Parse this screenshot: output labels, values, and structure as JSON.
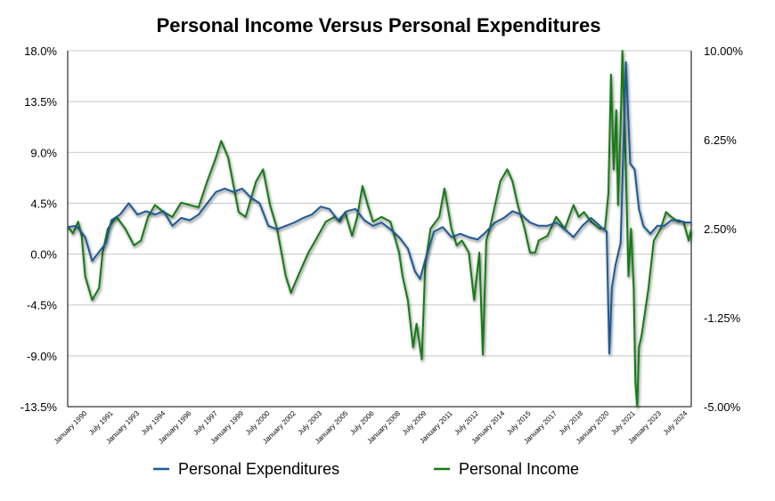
{
  "chart_data": {
    "type": "line",
    "title": "Personal Income Versus Personal Expenditures",
    "ylim_left": [
      -13.5,
      18.0
    ],
    "ylim_right": [
      -5.0,
      10.0
    ],
    "yticks_left": [
      "18.0%",
      "13.5%",
      "9.0%",
      "4.5%",
      "0.0%",
      "-4.5%",
      "-9.0%",
      "-13.5%"
    ],
    "yticks_right": [
      "10.00%",
      "6.25%",
      "2.50%",
      "-1.25%",
      "-5.00%"
    ],
    "x_labels": [
      "January 1990",
      "July 1991",
      "January 1993",
      "July 1994",
      "January 1996",
      "July 1997",
      "January 1999",
      "July 2000",
      "January 2002",
      "July 2003",
      "January 2005",
      "July 2006",
      "January 2008",
      "July 2009",
      "January 2011",
      "July 2012",
      "January 2014",
      "July 2015",
      "January 2017",
      "July 2018",
      "January 2020",
      "July 2021",
      "January 2023",
      "July 2024"
    ],
    "grid": true,
    "legend": "bottom",
    "series": [
      {
        "name": "Personal Expenditures",
        "axis": "left",
        "color": "#1f5a96",
        "x": [
          1989.0,
          1989.5,
          1990.0,
          1990.4,
          1990.8,
          1991.2,
          1991.5,
          1992.0,
          1992.5,
          1993.0,
          1993.5,
          1994.0,
          1994.5,
          1995.0,
          1995.5,
          1996.0,
          1996.5,
          1997.0,
          1997.5,
          1998.0,
          1998.5,
          1999.0,
          1999.5,
          2000.0,
          2000.5,
          2001.0,
          2001.5,
          2002.0,
          2002.5,
          2003.0,
          2003.5,
          2004.0,
          2004.5,
          2005.0,
          2005.5,
          2006.0,
          2006.5,
          2007.0,
          2007.5,
          2008.0,
          2008.5,
          2008.9,
          2009.2,
          2009.5,
          2010.0,
          2010.5,
          2011.0,
          2011.5,
          2012.0,
          2012.5,
          2013.0,
          2013.5,
          2014.0,
          2014.5,
          2015.0,
          2015.5,
          2016.0,
          2016.5,
          2017.0,
          2017.5,
          2018.0,
          2018.5,
          2019.0,
          2019.5,
          2019.9,
          2020.05,
          2020.2,
          2020.4,
          2020.7,
          2021.0,
          2021.25,
          2021.5,
          2021.75,
          2022.0,
          2022.4,
          2022.8,
          2023.2,
          2023.6,
          2024.0,
          2024.4,
          2024.75
        ],
        "values": [
          2.4,
          2.5,
          1.5,
          -0.6,
          0.2,
          1.0,
          3.0,
          3.5,
          4.5,
          3.5,
          3.8,
          3.5,
          3.8,
          2.5,
          3.2,
          3.0,
          3.5,
          4.5,
          5.5,
          5.8,
          5.5,
          5.8,
          5.0,
          4.5,
          2.5,
          2.2,
          2.5,
          2.8,
          3.2,
          3.5,
          4.2,
          4.0,
          3.0,
          3.8,
          4.0,
          3.0,
          2.5,
          2.8,
          2.2,
          1.5,
          0.5,
          -1.5,
          -2.2,
          -0.5,
          2.0,
          2.4,
          1.5,
          1.8,
          1.5,
          1.3,
          2.0,
          2.8,
          3.2,
          3.8,
          3.5,
          2.8,
          2.5,
          2.5,
          2.8,
          2.2,
          1.5,
          2.5,
          3.2,
          2.5,
          2.0,
          -8.8,
          -3.0,
          -1.0,
          1.0,
          17.0,
          8.0,
          7.5,
          4.0,
          2.5,
          1.8,
          2.5,
          2.5,
          3.0,
          3.0,
          2.8,
          2.8
        ]
      },
      {
        "name": "Personal Income",
        "axis": "right",
        "color": "#137a13",
        "x": [
          1989.0,
          1989.3,
          1989.6,
          1989.8,
          1990.0,
          1990.4,
          1990.8,
          1991.0,
          1991.3,
          1991.8,
          1992.3,
          1992.8,
          1993.2,
          1993.6,
          1994.0,
          1994.5,
          1995.0,
          1995.5,
          1996.0,
          1996.5,
          1997.0,
          1997.5,
          1997.8,
          1998.2,
          1998.8,
          1999.2,
          1999.8,
          2000.2,
          2000.6,
          2001.0,
          2001.5,
          2001.8,
          2002.2,
          2002.8,
          2003.2,
          2003.8,
          2004.3,
          2004.6,
          2004.9,
          2005.3,
          2005.6,
          2005.9,
          2006.2,
          2006.5,
          2007.0,
          2007.5,
          2008.0,
          2008.2,
          2008.5,
          2008.8,
          2009.0,
          2009.3,
          2009.5,
          2009.8,
          2010.3,
          2010.6,
          2011.0,
          2011.3,
          2011.6,
          2012.0,
          2012.3,
          2012.6,
          2012.8,
          2013.0,
          2013.2,
          2013.5,
          2013.8,
          2014.2,
          2014.5,
          2014.8,
          2015.2,
          2015.5,
          2015.8,
          2016.0,
          2016.5,
          2017.0,
          2017.5,
          2018.0,
          2018.3,
          2018.6,
          2019.0,
          2019.5,
          2019.8,
          2020.0,
          2020.15,
          2020.3,
          2020.45,
          2020.55,
          2020.7,
          2020.8,
          2021.0,
          2021.15,
          2021.3,
          2021.45,
          2021.55,
          2021.65,
          2021.75,
          2021.9,
          2022.0,
          2022.3,
          2022.6,
          2023.0,
          2023.3,
          2023.6,
          2024.0,
          2024.3,
          2024.6,
          2024.75
        ],
        "values": [
          2.6,
          2.3,
          2.8,
          2.2,
          0.5,
          -0.5,
          0.0,
          1.5,
          2.5,
          3.0,
          2.5,
          1.8,
          2.0,
          3.0,
          3.5,
          3.2,
          3.0,
          3.6,
          3.5,
          3.4,
          4.5,
          5.5,
          6.2,
          5.5,
          3.2,
          3.0,
          4.5,
          5.0,
          3.5,
          2.5,
          0.5,
          -0.2,
          0.5,
          1.5,
          2.0,
          2.8,
          3.0,
          2.8,
          3.2,
          2.2,
          3.0,
          4.3,
          3.5,
          2.8,
          3.0,
          2.8,
          1.5,
          0.5,
          -0.5,
          -2.5,
          -1.5,
          -3.0,
          1.0,
          2.5,
          3.0,
          4.2,
          2.5,
          1.8,
          2.0,
          1.5,
          -0.5,
          1.5,
          -2.8,
          2.0,
          2.5,
          3.5,
          4.5,
          5.0,
          4.5,
          3.5,
          2.5,
          1.5,
          1.5,
          2.0,
          2.2,
          3.0,
          2.5,
          3.5,
          3.0,
          3.2,
          2.8,
          2.5,
          2.5,
          4.0,
          9.0,
          5.0,
          7.5,
          3.5,
          6.8,
          10.0,
          5.0,
          0.5,
          2.5,
          0.0,
          -4.0,
          -5.0,
          -2.5,
          -2.0,
          -1.5,
          0.0,
          2.0,
          2.5,
          3.2,
          3.0,
          2.8,
          2.8,
          2.0,
          2.5
        ]
      }
    ]
  }
}
